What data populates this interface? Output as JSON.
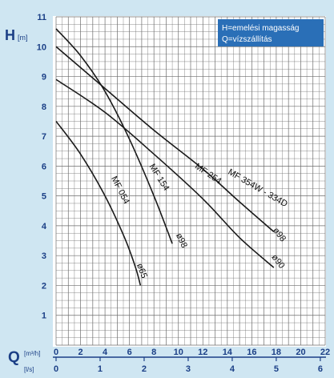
{
  "chart_data": {
    "type": "line",
    "y_axis": {
      "title": "H",
      "unit": "[m]",
      "ylim": [
        0,
        11
      ],
      "ticks": [
        1,
        2,
        3,
        4,
        5,
        6,
        7,
        8,
        9,
        10,
        11
      ]
    },
    "x_axis_top": {
      "title": "Q",
      "unit": "[m³/h]",
      "xlim": [
        0,
        22
      ],
      "ticks": [
        0,
        2,
        4,
        6,
        8,
        10,
        12,
        14,
        16,
        18,
        20,
        22
      ]
    },
    "x_axis_bottom": {
      "unit": "[l/s]",
      "ticks": [
        0,
        1,
        2,
        3,
        4,
        5,
        6
      ]
    },
    "legend": {
      "line1": "H=emelési magasság",
      "line2": "Q=vízszállítás",
      "placement": "top-right"
    },
    "grid": true,
    "series": [
      {
        "name": "MF 054",
        "diameter_label": "ø65",
        "points": [
          [
            0,
            7.5
          ],
          [
            2,
            6.4
          ],
          [
            4,
            5.0
          ],
          [
            5.6,
            3.6
          ],
          [
            6.5,
            2.6
          ],
          [
            6.9,
            2.0
          ]
        ]
      },
      {
        "name": "MF 154",
        "diameter_label": "ø98",
        "points": [
          [
            0,
            10.6
          ],
          [
            2,
            9.7
          ],
          [
            4,
            8.5
          ],
          [
            6,
            6.9
          ],
          [
            8,
            5.0
          ],
          [
            9.5,
            3.4
          ]
        ]
      },
      {
        "name": "MF 254",
        "diameter_label": "ø90",
        "points": [
          [
            0,
            8.9
          ],
          [
            4,
            7.8
          ],
          [
            8,
            6.4
          ],
          [
            12,
            4.9
          ],
          [
            15,
            3.6
          ],
          [
            17.8,
            2.6
          ]
        ]
      },
      {
        "name": "MF 354W - 334D",
        "diameter_label": "ø98",
        "points": [
          [
            0,
            10.0
          ],
          [
            4,
            8.6
          ],
          [
            8,
            7.2
          ],
          [
            12,
            5.9
          ],
          [
            15,
            4.8
          ],
          [
            17.8,
            3.8
          ]
        ]
      }
    ]
  }
}
